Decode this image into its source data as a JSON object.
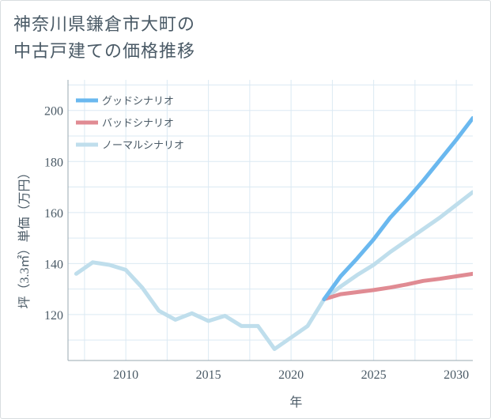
{
  "title_lines": [
    "神奈川県鎌倉市大町の",
    "中古戸建ての価格推移"
  ],
  "chart_data": {
    "type": "line",
    "title": "神奈川県鎌倉市大町の中古戸建ての価格推移",
    "xlabel": "年",
    "ylabel": "坪（3.3㎡）単価（万円）",
    "xlim": [
      2006.5,
      2031
    ],
    "ylim": [
      102,
      212
    ],
    "xticks": [
      2010,
      2015,
      2020,
      2025,
      2030
    ],
    "yticks": [
      120,
      140,
      160,
      180,
      200
    ],
    "xgrid": [
      2007.5,
      2010,
      2012.5,
      2015,
      2017.5,
      2020,
      2022.5,
      2025,
      2027.5,
      2030
    ],
    "ygrid": [
      110,
      120,
      130,
      140,
      150,
      160,
      170,
      180,
      190,
      200,
      210
    ],
    "legend_position": "top-left",
    "series": [
      {
        "name": "グッドシナリオ",
        "color": "#6ab8ef",
        "x": [
          2022,
          2023,
          2024,
          2025,
          2026,
          2027,
          2028,
          2029,
          2030,
          2031
        ],
        "y": [
          126,
          135,
          142,
          149.5,
          158,
          165,
          172.5,
          180.5,
          188.5,
          197
        ]
      },
      {
        "name": "バッドシナリオ",
        "color": "#e08b93",
        "x": [
          2022,
          2023,
          2024,
          2025,
          2026,
          2027,
          2028,
          2029,
          2030,
          2031
        ],
        "y": [
          126,
          128,
          128.8,
          129.6,
          130.6,
          131.8,
          133.2,
          134,
          135,
          136
        ]
      },
      {
        "name": "ノーマルシナリオ",
        "color": "#bfdeec",
        "x": [
          2007,
          2008,
          2009,
          2010,
          2011,
          2012,
          2013,
          2014,
          2015,
          2016,
          2017,
          2018,
          2019,
          2020,
          2021,
          2022,
          2023,
          2024,
          2025,
          2026,
          2027,
          2028,
          2029,
          2030,
          2031
        ],
        "y": [
          136,
          140.5,
          139.5,
          137.5,
          130.5,
          121.5,
          118,
          120.5,
          117.5,
          119.5,
          115.5,
          115.5,
          106.5,
          111,
          115.5,
          126,
          131,
          135.5,
          139.5,
          144.5,
          149,
          153.5,
          158,
          163,
          168
        ]
      }
    ]
  }
}
